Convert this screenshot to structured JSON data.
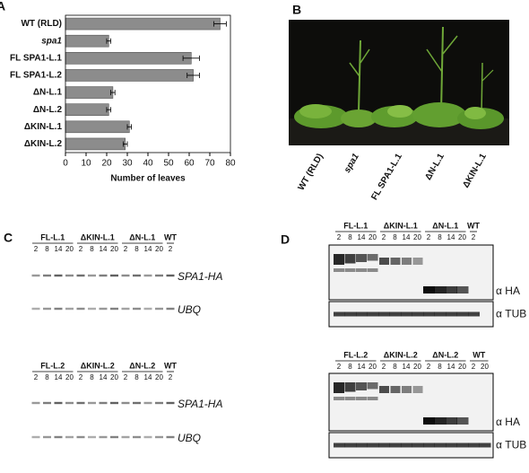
{
  "chart_data": {
    "type": "bar",
    "orientation": "horizontal",
    "panel_label": "A",
    "categories": [
      "WT (RLD)",
      "spa1",
      "FL SPA1-L.1",
      "FL SPA1-L.2",
      "ΔN-L.1",
      "ΔN-L.2",
      "ΔKIN-L.1",
      "ΔKIN-L.2"
    ],
    "values": [
      75,
      21,
      61,
      62,
      23,
      21,
      31,
      29
    ],
    "errors": [
      3,
      1,
      4,
      3,
      1,
      1,
      1,
      1
    ],
    "color": "#8c8c8c",
    "xlim": [
      0,
      80
    ],
    "xticks": [
      0,
      10,
      20,
      30,
      40,
      50,
      60,
      70,
      80
    ],
    "xlabel": "Number of leaves"
  },
  "panel_b": {
    "label": "B",
    "samples": [
      "WT (RLD)",
      "spa1",
      "FL SPA1-L.1",
      "ΔN-L.1",
      "ΔKIN-L.1"
    ]
  },
  "panel_c": {
    "label": "C",
    "blots": [
      {
        "groups": [
          {
            "name": "FL-L.1",
            "lanes": [
              2,
              8,
              14,
              20
            ]
          },
          {
            "name": "ΔKIN-L.1",
            "lanes": [
              2,
              8,
              14,
              20
            ]
          },
          {
            "name": "ΔN-L.1",
            "lanes": [
              2,
              8,
              14,
              20
            ]
          },
          {
            "name": "WT",
            "lanes": [
              2
            ]
          }
        ],
        "rows": [
          "SPA1-HA",
          "UBQ"
        ]
      },
      {
        "groups": [
          {
            "name": "FL-L.2",
            "lanes": [
              2,
              8,
              14,
              20
            ]
          },
          {
            "name": "ΔKIN-L.2",
            "lanes": [
              2,
              8,
              14,
              20
            ]
          },
          {
            "name": "ΔN-L.2",
            "lanes": [
              2,
              8,
              14,
              20
            ]
          },
          {
            "name": "WT",
            "lanes": [
              2
            ]
          }
        ],
        "rows": [
          "SPA1-HA",
          "UBQ"
        ]
      }
    ]
  },
  "panel_d": {
    "label": "D",
    "blots": [
      {
        "groups": [
          {
            "name": "FL-L.1",
            "lanes": [
              2,
              8,
              14,
              20
            ]
          },
          {
            "name": "ΔKIN-L.1",
            "lanes": [
              2,
              8,
              14,
              20
            ]
          },
          {
            "name": "ΔN-L.1",
            "lanes": [
              2,
              8,
              14,
              20
            ]
          },
          {
            "name": "WT",
            "lanes": [
              2
            ]
          }
        ],
        "rows": [
          "α HA",
          "α TUB"
        ]
      },
      {
        "groups": [
          {
            "name": "FL-L.2",
            "lanes": [
              2,
              8,
              14,
              20
            ]
          },
          {
            "name": "ΔKIN-L.2",
            "lanes": [
              2,
              8,
              14,
              20
            ]
          },
          {
            "name": "ΔN-L.2",
            "lanes": [
              2,
              8,
              14,
              20
            ]
          },
          {
            "name": "WT",
            "lanes": [
              2,
              20
            ]
          }
        ],
        "rows": [
          "α HA",
          "α TUB"
        ]
      }
    ]
  }
}
